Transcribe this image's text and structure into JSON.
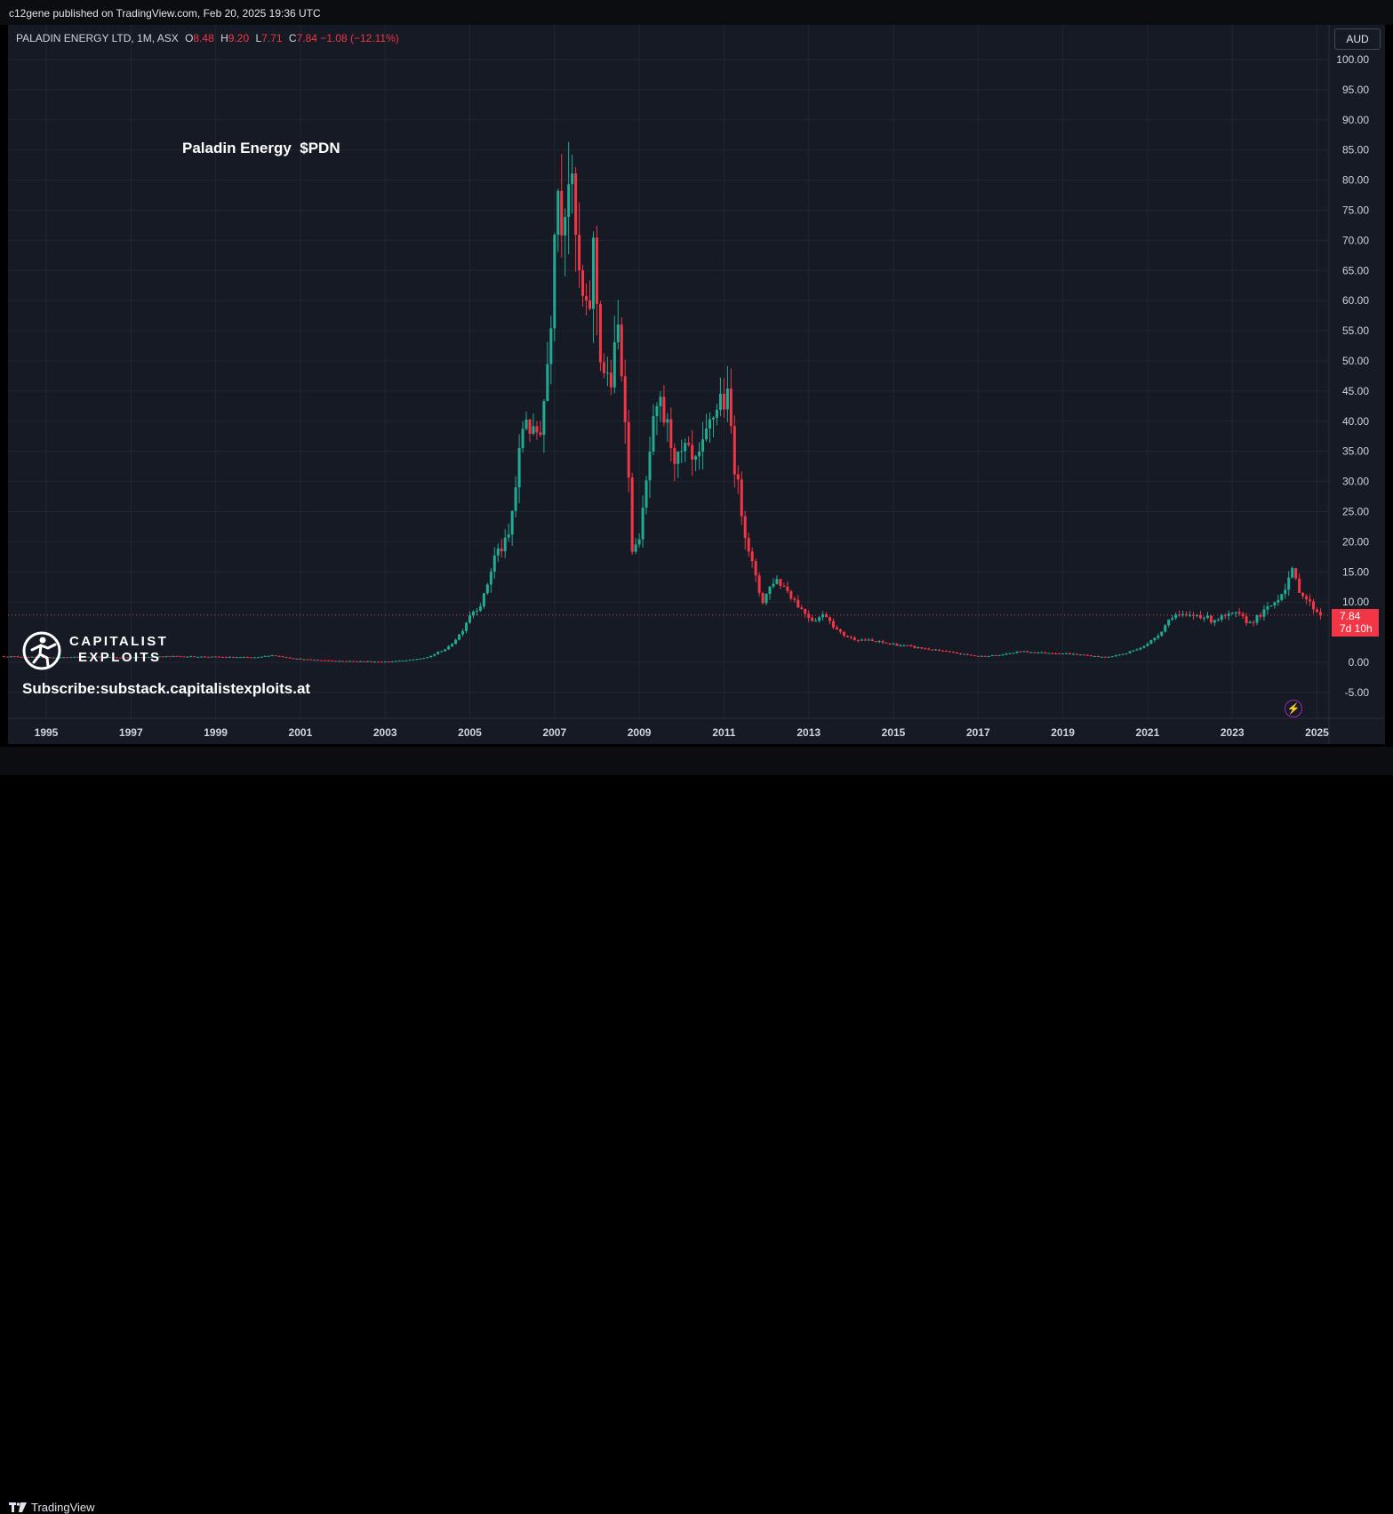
{
  "header": {
    "published_by": "c12gene published on TradingView.com, Feb 20, 2025 19:36 UTC"
  },
  "legend": {
    "symbol": "PALADIN ENERGY LTD, 1M, ASX",
    "open_label": "O",
    "open": "8.48",
    "high_label": "H",
    "high": "9.20",
    "low_label": "L",
    "low": "7.71",
    "close_label": "C",
    "close": "7.84",
    "change": "−1.08 (−12.11%)"
  },
  "currency_button": "AUD",
  "annotation": "Paladin Energy  $PDN",
  "price_tag": {
    "price": "7.84",
    "countdown": "7d 10h"
  },
  "watermark": {
    "line1": "CAPITALIST",
    "line2": "EXPLOITS",
    "subscribe": "Subscribe:substack.capitalistexploits.at"
  },
  "footer": {
    "brand": "TradingView"
  },
  "colors": {
    "up": "#22ab94",
    "down": "#f23645",
    "background": "#161a25",
    "grid": "#222632",
    "axis_text": "#d1d4dc"
  },
  "chart_data": {
    "type": "candlestick",
    "title": "Paladin Energy  $PDN",
    "interval": "1M",
    "currency": "AUD",
    "ylim": [
      -7,
      101
    ],
    "y_ticks": [
      "100.00",
      "95.00",
      "90.00",
      "85.00",
      "80.00",
      "75.00",
      "70.00",
      "65.00",
      "60.00",
      "55.00",
      "50.00",
      "45.00",
      "40.00",
      "35.00",
      "30.00",
      "25.00",
      "20.00",
      "15.00",
      "10.00",
      "0.00",
      "-5.00"
    ],
    "x_ticks": [
      "1995",
      "1997",
      "1999",
      "2001",
      "2003",
      "2005",
      "2007",
      "2009",
      "2011",
      "2013",
      "2015",
      "2017",
      "2019",
      "2021",
      "2023",
      "2025"
    ],
    "last_price": 7.84,
    "grid": true,
    "approx_close_path": [
      [
        1994.0,
        1.0
      ],
      [
        1995.0,
        0.8
      ],
      [
        1996.0,
        0.9
      ],
      [
        1997.0,
        0.8
      ],
      [
        1998.0,
        1.0
      ],
      [
        1999.0,
        0.9
      ],
      [
        2000.0,
        0.8
      ],
      [
        2000.3,
        1.2
      ],
      [
        2001.0,
        0.5
      ],
      [
        2002.0,
        0.2
      ],
      [
        2003.0,
        0.1
      ],
      [
        2003.5,
        0.3
      ],
      [
        2004.0,
        0.8
      ],
      [
        2004.5,
        2.5
      ],
      [
        2004.8,
        5.0
      ],
      [
        2005.0,
        8.0
      ],
      [
        2005.3,
        10.0
      ],
      [
        2005.6,
        18.0
      ],
      [
        2005.9,
        20.0
      ],
      [
        2006.1,
        30.0
      ],
      [
        2006.3,
        42.0
      ],
      [
        2006.5,
        37.0
      ],
      [
        2006.7,
        40.0
      ],
      [
        2006.9,
        55.0
      ],
      [
        2007.0,
        75.0
      ],
      [
        2007.1,
        80.0
      ],
      [
        2007.2,
        72.0
      ],
      [
        2007.3,
        83.0
      ],
      [
        2007.4,
        78.0
      ],
      [
        2007.6,
        62.0
      ],
      [
        2007.8,
        55.0
      ],
      [
        2007.9,
        70.0
      ],
      [
        2008.1,
        50.0
      ],
      [
        2008.3,
        45.0
      ],
      [
        2008.5,
        55.0
      ],
      [
        2008.7,
        40.0
      ],
      [
        2008.8,
        20.0
      ],
      [
        2008.9,
        18.0
      ],
      [
        2009.1,
        25.0
      ],
      [
        2009.3,
        38.0
      ],
      [
        2009.5,
        42.0
      ],
      [
        2009.7,
        38.0
      ],
      [
        2009.9,
        33.0
      ],
      [
        2010.1,
        35.0
      ],
      [
        2010.3,
        32.0
      ],
      [
        2010.5,
        35.0
      ],
      [
        2010.7,
        40.0
      ],
      [
        2010.9,
        44.0
      ],
      [
        2011.1,
        43.0
      ],
      [
        2011.3,
        30.0
      ],
      [
        2011.5,
        22.0
      ],
      [
        2011.7,
        15.0
      ],
      [
        2011.9,
        10.0
      ],
      [
        2012.2,
        14.0
      ],
      [
        2012.5,
        12.0
      ],
      [
        2012.8,
        9.0
      ],
      [
        2013.1,
        7.0
      ],
      [
        2013.4,
        8.0
      ],
      [
        2013.7,
        5.0
      ],
      [
        2014.0,
        4.0
      ],
      [
        2014.5,
        3.5
      ],
      [
        2015.0,
        3.0
      ],
      [
        2015.5,
        2.5
      ],
      [
        2016.0,
        2.0
      ],
      [
        2016.5,
        1.5
      ],
      [
        2017.0,
        1.0
      ],
      [
        2017.5,
        1.2
      ],
      [
        2018.0,
        1.8
      ],
      [
        2018.5,
        1.6
      ],
      [
        2019.0,
        1.5
      ],
      [
        2019.5,
        1.2
      ],
      [
        2020.0,
        0.8
      ],
      [
        2020.5,
        1.5
      ],
      [
        2021.0,
        3.0
      ],
      [
        2021.3,
        5.0
      ],
      [
        2021.6,
        8.0
      ],
      [
        2021.9,
        7.5
      ],
      [
        2022.2,
        8.0
      ],
      [
        2022.5,
        7.0
      ],
      [
        2022.8,
        7.5
      ],
      [
        2023.1,
        8.0
      ],
      [
        2023.4,
        6.5
      ],
      [
        2023.7,
        8.0
      ],
      [
        2024.0,
        10.0
      ],
      [
        2024.2,
        12.0
      ],
      [
        2024.4,
        15.0
      ],
      [
        2024.6,
        12.0
      ],
      [
        2024.8,
        10.0
      ],
      [
        2025.0,
        8.5
      ],
      [
        2025.1,
        7.84
      ]
    ]
  }
}
